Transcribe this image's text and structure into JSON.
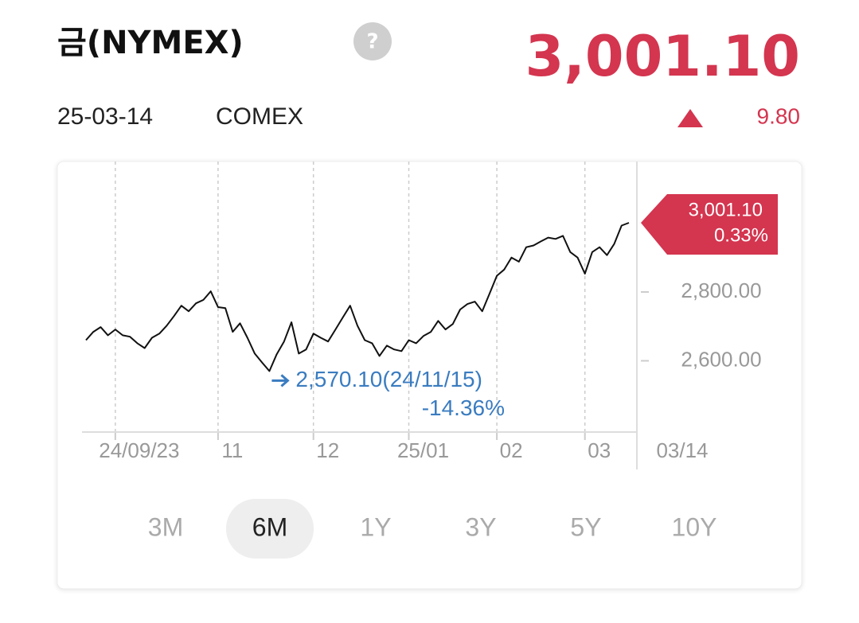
{
  "header": {
    "title": "금(NYMEX)",
    "help": "?",
    "date": "25-03-14",
    "exchange": "COMEX",
    "price": "3,001.10",
    "change": "9.80"
  },
  "chart_data": {
    "type": "line",
    "color": "#111111",
    "categories": [
      null,
      null,
      null,
      null,
      "24/09/23",
      null,
      null,
      null,
      null,
      null,
      null,
      null,
      null,
      null,
      null,
      null,
      null,
      null,
      "11",
      null,
      null,
      null,
      null,
      null,
      null,
      null,
      null,
      null,
      null,
      null,
      null,
      "12",
      null,
      null,
      null,
      null,
      null,
      null,
      null,
      null,
      null,
      null,
      null,
      null,
      "25/01",
      null,
      null,
      null,
      null,
      null,
      null,
      null,
      null,
      null,
      null,
      null,
      "02",
      null,
      null,
      null,
      null,
      null,
      null,
      null,
      null,
      null,
      null,
      null,
      "03",
      null,
      null,
      null,
      null,
      null,
      "03/14"
    ],
    "values": [
      2660,
      2684,
      2698,
      2674,
      2691,
      2674,
      2670,
      2651,
      2637,
      2667,
      2679,
      2702,
      2730,
      2760,
      2744,
      2767,
      2777,
      2802,
      2756,
      2753,
      2684,
      2709,
      2667,
      2621,
      2595,
      2570.1,
      2619,
      2656,
      2712,
      2621,
      2633,
      2679,
      2667,
      2656,
      2691,
      2726,
      2760,
      2702,
      2660,
      2651,
      2614,
      2644,
      2633,
      2628,
      2660,
      2651,
      2672,
      2684,
      2716,
      2691,
      2707,
      2749,
      2765,
      2772,
      2744,
      2795,
      2847,
      2865,
      2900,
      2888,
      2930,
      2935,
      2947,
      2958,
      2954,
      2963,
      2916,
      2900,
      2853,
      2916,
      2930,
      2907,
      2940,
      2993,
      3001.1
    ],
    "ylim": [
      2393,
      3179
    ],
    "yticks": [
      {
        "value": 2600,
        "label": "2,600.00"
      },
      {
        "value": 2800,
        "label": "2,800.00"
      }
    ],
    "last_label": "3,001.10",
    "last_change": "0.33%",
    "min_label": "2,570.10(24/11/15)",
    "min_change": "-14.36%",
    "grid": true
  },
  "ranges": [
    "3M",
    "6M",
    "1Y",
    "3Y",
    "5Y",
    "10Y"
  ],
  "selected_range": "6M"
}
